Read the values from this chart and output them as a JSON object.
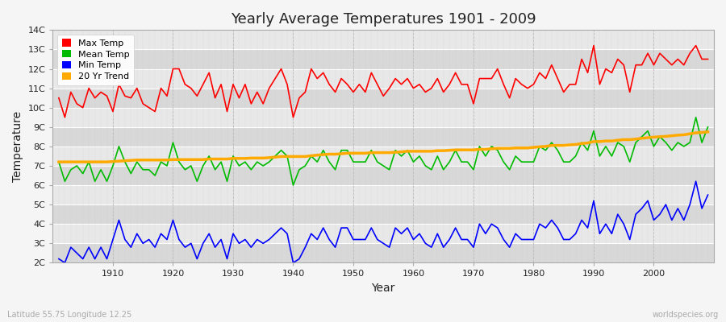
{
  "title": "Yearly Average Temperatures 1901 - 2009",
  "xlabel": "Year",
  "ylabel": "Temperature",
  "subtitle_left": "Latitude 55.75 Longitude 12.25",
  "subtitle_right": "worldspecies.org",
  "years": [
    1901,
    1902,
    1903,
    1904,
    1905,
    1906,
    1907,
    1908,
    1909,
    1910,
    1911,
    1912,
    1913,
    1914,
    1915,
    1916,
    1917,
    1918,
    1919,
    1920,
    1921,
    1922,
    1923,
    1924,
    1925,
    1926,
    1927,
    1928,
    1929,
    1930,
    1931,
    1932,
    1933,
    1934,
    1935,
    1936,
    1937,
    1938,
    1939,
    1940,
    1941,
    1942,
    1943,
    1944,
    1945,
    1946,
    1947,
    1948,
    1949,
    1950,
    1951,
    1952,
    1953,
    1954,
    1955,
    1956,
    1957,
    1958,
    1959,
    1960,
    1961,
    1962,
    1963,
    1964,
    1965,
    1966,
    1967,
    1968,
    1969,
    1970,
    1971,
    1972,
    1973,
    1974,
    1975,
    1976,
    1977,
    1978,
    1979,
    1980,
    1981,
    1982,
    1983,
    1984,
    1985,
    1986,
    1987,
    1988,
    1989,
    1990,
    1991,
    1992,
    1993,
    1994,
    1995,
    1996,
    1997,
    1998,
    1999,
    2000,
    2001,
    2002,
    2003,
    2004,
    2005,
    2006,
    2007,
    2008,
    2009
  ],
  "max_temp": [
    10.5,
    9.5,
    10.8,
    10.2,
    10.0,
    11.0,
    10.5,
    10.8,
    10.6,
    9.8,
    11.2,
    10.6,
    10.5,
    11.0,
    10.2,
    10.0,
    9.8,
    11.0,
    10.6,
    12.0,
    12.0,
    11.2,
    11.0,
    10.6,
    11.2,
    11.8,
    10.5,
    11.2,
    9.8,
    11.2,
    10.5,
    11.2,
    10.2,
    10.8,
    10.2,
    11.0,
    11.5,
    12.0,
    11.2,
    9.5,
    10.5,
    10.8,
    12.0,
    11.5,
    11.8,
    11.2,
    10.8,
    11.5,
    11.2,
    10.8,
    11.2,
    10.8,
    11.8,
    11.2,
    10.6,
    11.0,
    11.5,
    11.2,
    11.5,
    11.0,
    11.2,
    10.8,
    11.0,
    11.5,
    10.8,
    11.2,
    11.8,
    11.2,
    11.2,
    10.2,
    11.5,
    11.5,
    11.5,
    12.0,
    11.2,
    10.5,
    11.5,
    11.2,
    11.0,
    11.2,
    11.8,
    11.5,
    12.2,
    11.5,
    10.8,
    11.2,
    11.2,
    12.5,
    11.8,
    13.2,
    11.2,
    12.0,
    11.8,
    12.5,
    12.2,
    10.8,
    12.2,
    12.2,
    12.8,
    12.2,
    12.8,
    12.5,
    12.2,
    12.5,
    12.2,
    12.8,
    13.2,
    12.5,
    12.5
  ],
  "mean_temp": [
    7.2,
    6.2,
    6.8,
    7.0,
    6.6,
    7.2,
    6.2,
    6.8,
    6.2,
    7.0,
    8.0,
    7.2,
    6.6,
    7.2,
    6.8,
    6.8,
    6.5,
    7.2,
    7.0,
    8.2,
    7.2,
    6.8,
    7.0,
    6.2,
    7.0,
    7.5,
    6.8,
    7.2,
    6.2,
    7.5,
    7.0,
    7.2,
    6.8,
    7.2,
    7.0,
    7.2,
    7.5,
    7.8,
    7.5,
    6.0,
    6.8,
    7.0,
    7.5,
    7.2,
    7.8,
    7.2,
    6.8,
    7.8,
    7.8,
    7.2,
    7.2,
    7.2,
    7.8,
    7.2,
    7.0,
    6.8,
    7.8,
    7.5,
    7.8,
    7.2,
    7.5,
    7.0,
    6.8,
    7.5,
    6.8,
    7.2,
    7.8,
    7.2,
    7.2,
    6.8,
    8.0,
    7.5,
    8.0,
    7.8,
    7.2,
    6.8,
    7.5,
    7.2,
    7.2,
    7.2,
    8.0,
    7.8,
    8.2,
    7.8,
    7.2,
    7.2,
    7.5,
    8.2,
    7.8,
    8.8,
    7.5,
    8.0,
    7.5,
    8.2,
    8.0,
    7.2,
    8.2,
    8.5,
    8.8,
    8.0,
    8.5,
    8.2,
    7.8,
    8.2,
    8.0,
    8.2,
    9.5,
    8.2,
    9.0
  ],
  "min_temp": [
    2.2,
    2.0,
    2.8,
    2.5,
    2.2,
    2.8,
    2.2,
    2.8,
    2.2,
    3.2,
    4.2,
    3.2,
    2.8,
    3.5,
    3.0,
    3.2,
    2.8,
    3.5,
    3.2,
    4.2,
    3.2,
    2.8,
    3.0,
    2.2,
    3.0,
    3.5,
    2.8,
    3.2,
    2.2,
    3.5,
    3.0,
    3.2,
    2.8,
    3.2,
    3.0,
    3.2,
    3.5,
    3.8,
    3.5,
    2.0,
    2.2,
    2.8,
    3.5,
    3.2,
    3.8,
    3.2,
    2.8,
    3.8,
    3.8,
    3.2,
    3.2,
    3.2,
    3.8,
    3.2,
    3.0,
    2.8,
    3.8,
    3.5,
    3.8,
    3.2,
    3.5,
    3.0,
    2.8,
    3.5,
    2.8,
    3.2,
    3.8,
    3.2,
    3.2,
    2.8,
    4.0,
    3.5,
    4.0,
    3.8,
    3.2,
    2.8,
    3.5,
    3.2,
    3.2,
    3.2,
    4.0,
    3.8,
    4.2,
    3.8,
    3.2,
    3.2,
    3.5,
    4.2,
    3.8,
    5.2,
    3.5,
    4.0,
    3.5,
    4.5,
    4.0,
    3.2,
    4.5,
    4.8,
    5.2,
    4.2,
    4.5,
    5.0,
    4.2,
    4.8,
    4.2,
    5.0,
    6.2,
    4.8,
    5.5
  ],
  "trend_years": [
    1901,
    1902,
    1903,
    1904,
    1905,
    1906,
    1907,
    1908,
    1909,
    1910,
    1911,
    1912,
    1913,
    1914,
    1915,
    1916,
    1917,
    1918,
    1919,
    1920,
    1921,
    1922,
    1923,
    1924,
    1925,
    1926,
    1927,
    1928,
    1929,
    1930,
    1931,
    1932,
    1933,
    1934,
    1935,
    1936,
    1937,
    1938,
    1939,
    1940,
    1941,
    1942,
    1943,
    1944,
    1945,
    1946,
    1947,
    1948,
    1949,
    1950,
    1951,
    1952,
    1953,
    1954,
    1955,
    1956,
    1957,
    1958,
    1959,
    1960,
    1961,
    1962,
    1963,
    1964,
    1965,
    1966,
    1967,
    1968,
    1969,
    1970,
    1971,
    1972,
    1973,
    1974,
    1975,
    1976,
    1977,
    1978,
    1979,
    1980,
    1981,
    1982,
    1983,
    1984,
    1985,
    1986,
    1987,
    1988,
    1989,
    1990,
    1991,
    1992,
    1993,
    1994,
    1995,
    1996,
    1997,
    1998,
    1999,
    2000,
    2001,
    2002,
    2003,
    2004,
    2005,
    2006,
    2007,
    2008,
    2009
  ],
  "trend_vals": [
    7.2,
    7.2,
    7.2,
    7.2,
    7.2,
    7.2,
    7.2,
    7.2,
    7.2,
    7.22,
    7.24,
    7.26,
    7.28,
    7.3,
    7.3,
    7.3,
    7.3,
    7.3,
    7.3,
    7.32,
    7.32,
    7.32,
    7.32,
    7.32,
    7.32,
    7.35,
    7.35,
    7.35,
    7.35,
    7.38,
    7.38,
    7.38,
    7.4,
    7.4,
    7.4,
    7.42,
    7.45,
    7.48,
    7.48,
    7.48,
    7.48,
    7.48,
    7.52,
    7.55,
    7.58,
    7.6,
    7.6,
    7.62,
    7.65,
    7.65,
    7.65,
    7.65,
    7.68,
    7.68,
    7.68,
    7.68,
    7.7,
    7.72,
    7.75,
    7.75,
    7.75,
    7.75,
    7.75,
    7.78,
    7.78,
    7.8,
    7.82,
    7.82,
    7.82,
    7.82,
    7.85,
    7.85,
    7.88,
    7.9,
    7.9,
    7.9,
    7.92,
    7.92,
    7.92,
    7.95,
    7.98,
    8.0,
    8.05,
    8.05,
    8.05,
    8.08,
    8.1,
    8.15,
    8.18,
    8.25,
    8.25,
    8.28,
    8.28,
    8.32,
    8.35,
    8.35,
    8.38,
    8.42,
    8.45,
    8.48,
    8.5,
    8.52,
    8.55,
    8.58,
    8.6,
    8.65,
    8.7,
    8.72,
    8.75
  ],
  "colors": {
    "max": "#ff0000",
    "mean": "#00bb00",
    "min": "#0000ff",
    "trend": "#ffaa00",
    "background": "#f5f5f5",
    "plot_bg_light": "#e8e8e8",
    "plot_bg_dark": "#d8d8d8",
    "grid_v": "#cccccc",
    "grid_h": "#ffffff",
    "text": "#222222",
    "text_light": "#aaaaaa"
  },
  "ylim": [
    2,
    14
  ],
  "yticks": [
    2,
    3,
    4,
    5,
    6,
    7,
    8,
    9,
    10,
    11,
    12,
    13,
    14
  ],
  "ytick_labels": [
    "2C",
    "3C",
    "4C",
    "5C",
    "6C",
    "7C",
    "8C",
    "9C",
    "10C",
    "11C",
    "12C",
    "13C",
    "14C"
  ],
  "xlim_start": 1900,
  "xlim_end": 2010
}
